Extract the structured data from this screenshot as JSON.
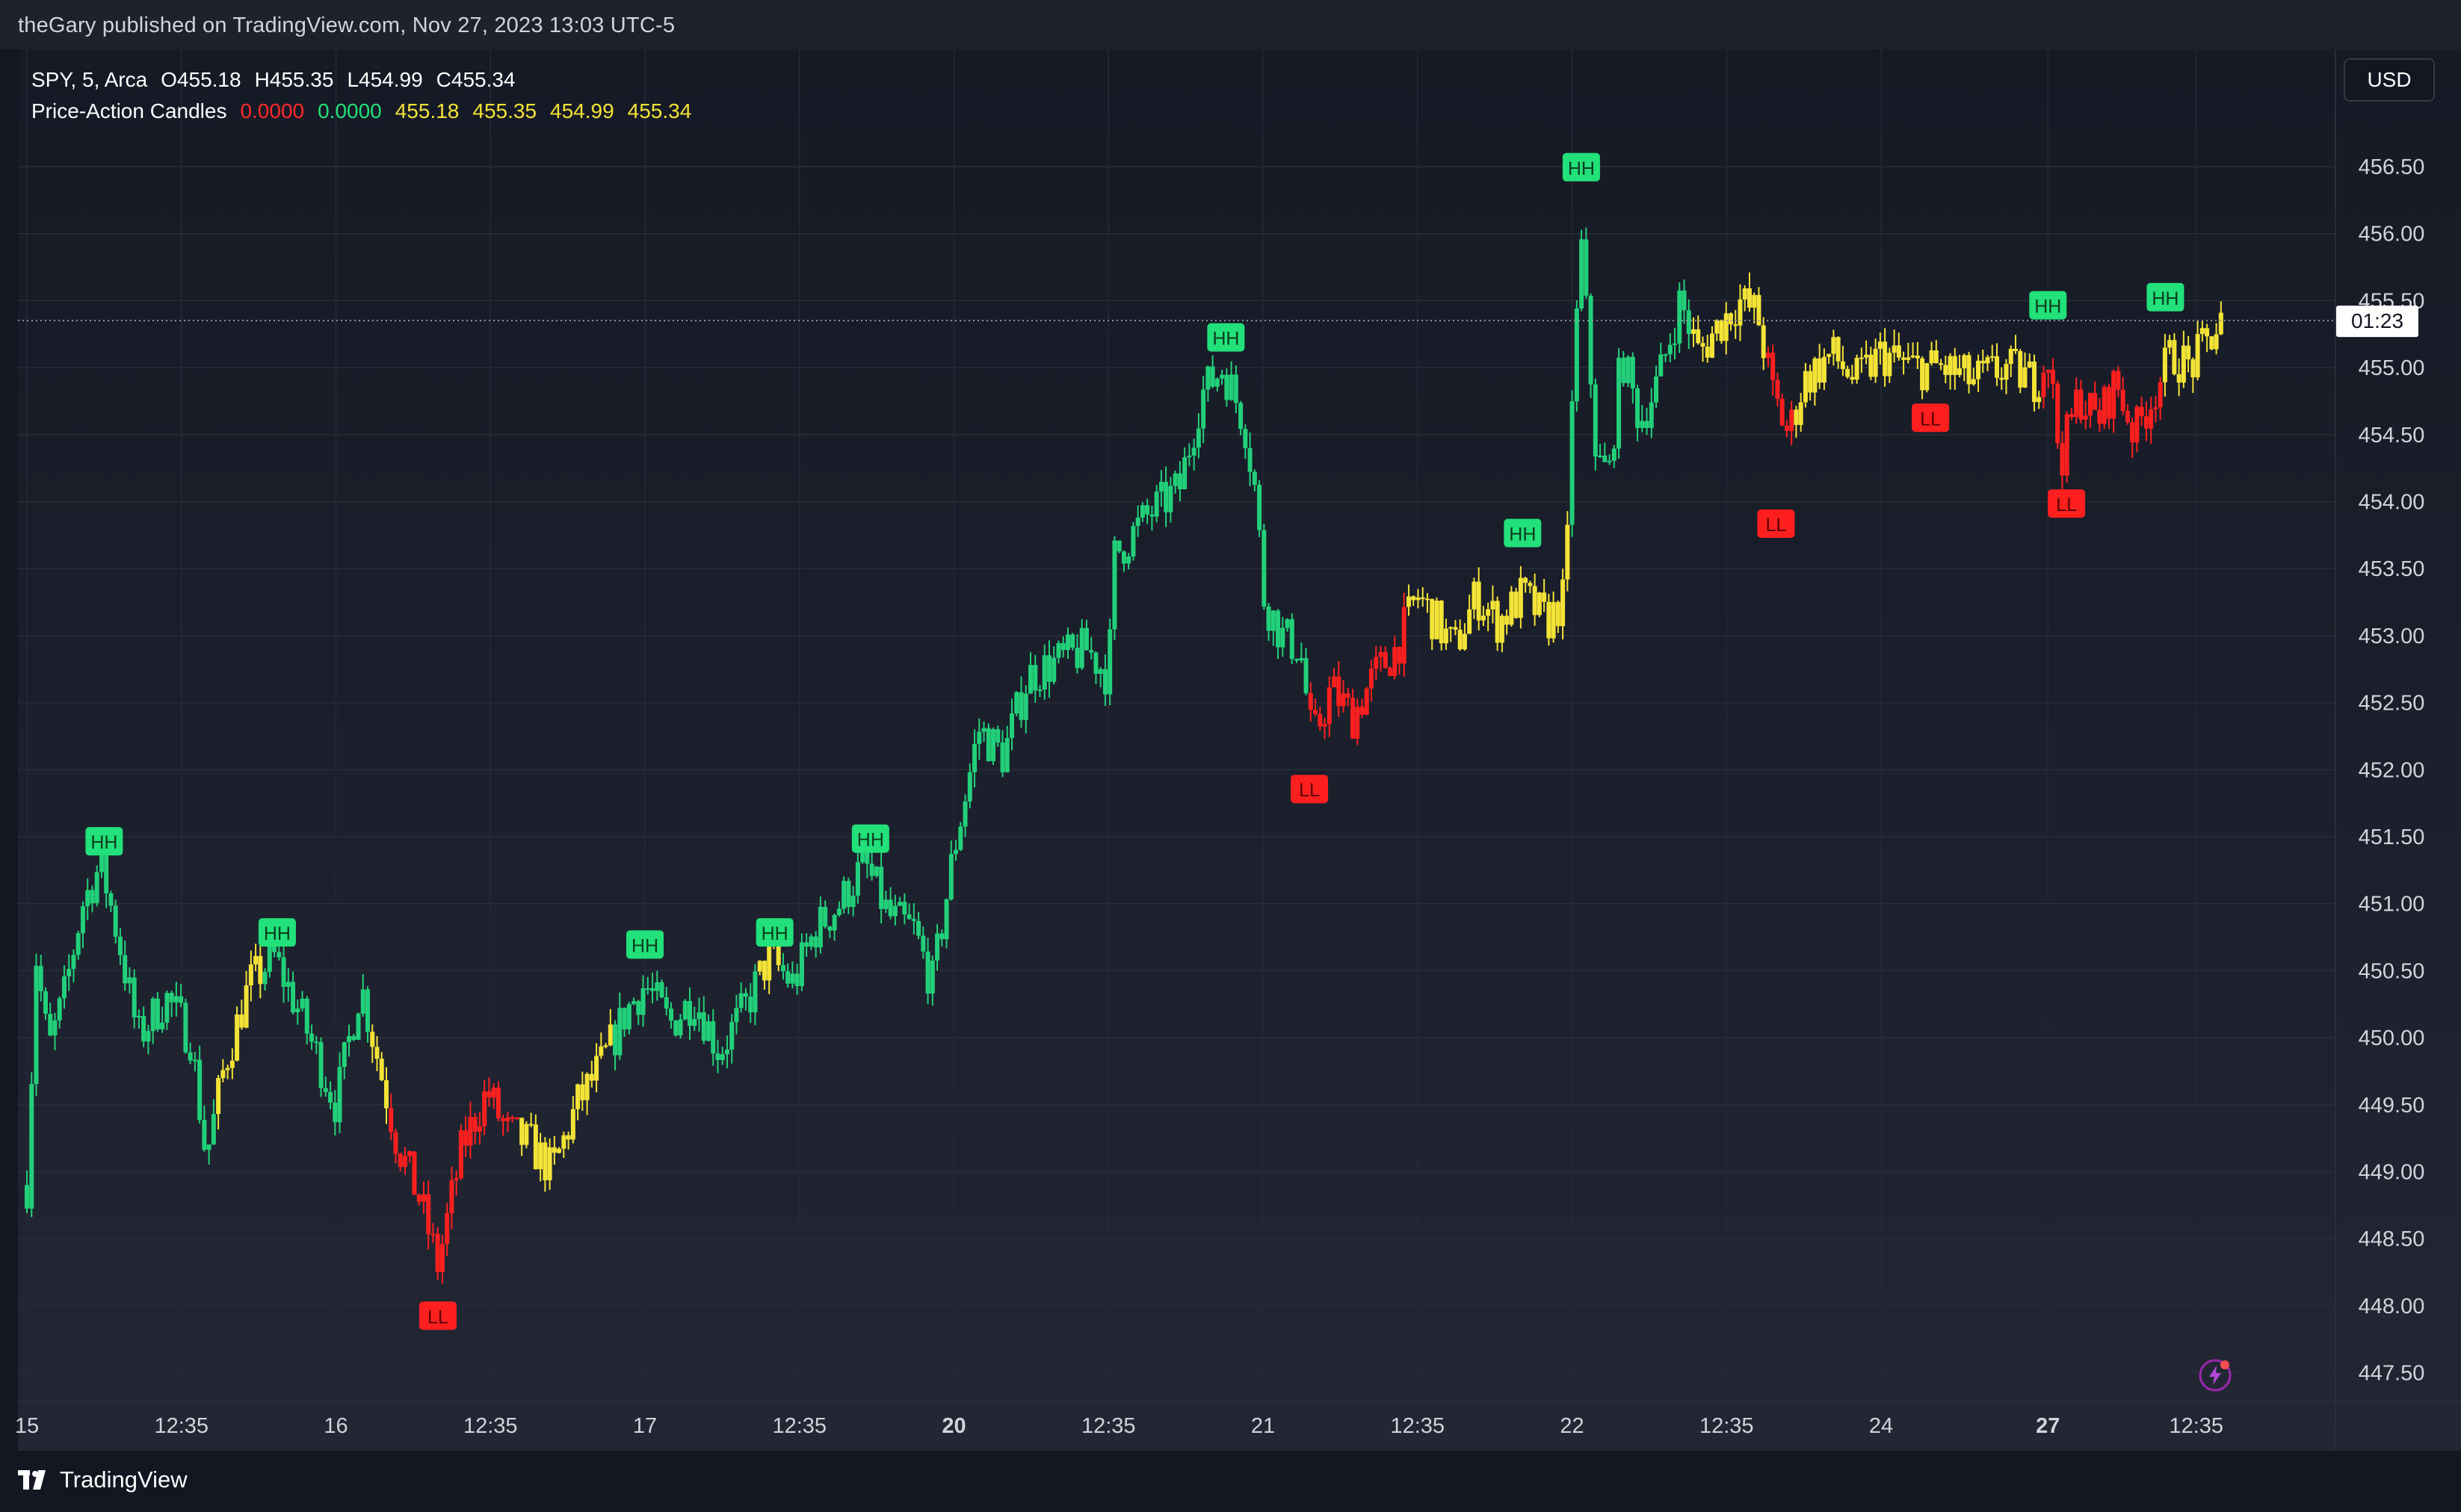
{
  "header": {
    "publish_line": "theGary published on TradingView.com, Nov 27, 2023 13:03 UTC-5"
  },
  "legend": {
    "symbol": "SPY, 5, Arca",
    "ohlc": [
      "O455.18",
      "H455.35",
      "L454.99",
      "C455.34"
    ],
    "indicator_name": "Price-Action Candles",
    "indicator_values": [
      {
        "text": "0.0000",
        "color": "#ff2a2a"
      },
      {
        "text": "0.0000",
        "color": "#22e07a"
      },
      {
        "text": "455.18",
        "color": "#f3e337"
      },
      {
        "text": "455.35",
        "color": "#f3e337"
      },
      {
        "text": "454.99",
        "color": "#f3e337"
      },
      {
        "text": "455.34",
        "color": "#f3e337"
      }
    ]
  },
  "currency": "USD",
  "countdown": "01:23",
  "brand": "TradingView",
  "colors": {
    "background": "#131722",
    "green": "#22d07a",
    "yellow": "#f3e337",
    "red": "#ff1f1f",
    "label_green": "#22e07a",
    "label_red": "#ff1f1f"
  },
  "icons": [
    "tradingview-logo-icon",
    "lightning-icon"
  ],
  "chart_data": {
    "type": "candlestick",
    "title": "",
    "ylabel": "",
    "ylim": [
      447.25,
      457.0
    ],
    "y_ticks": [
      "456.50",
      "456.00",
      "455.50",
      "455.00",
      "454.50",
      "454.00",
      "453.50",
      "453.00",
      "452.50",
      "452.00",
      "451.50",
      "451.00",
      "450.50",
      "450.00",
      "449.50",
      "449.00",
      "448.50",
      "448.00",
      "447.50"
    ],
    "x_ticks": [
      {
        "label": "15",
        "bold": false,
        "t": 0
      },
      {
        "label": "12:35",
        "bold": false,
        "t": 0.5
      },
      {
        "label": "16",
        "bold": false,
        "t": 1
      },
      {
        "label": "12:35",
        "bold": false,
        "t": 1.5
      },
      {
        "label": "17",
        "bold": false,
        "t": 2
      },
      {
        "label": "12:35",
        "bold": false,
        "t": 2.5
      },
      {
        "label": "20",
        "bold": true,
        "t": 3
      },
      {
        "label": "12:35",
        "bold": false,
        "t": 3.5
      },
      {
        "label": "21",
        "bold": false,
        "t": 4
      },
      {
        "label": "12:35",
        "bold": false,
        "t": 4.5
      },
      {
        "label": "22",
        "bold": false,
        "t": 5
      },
      {
        "label": "12:35",
        "bold": false,
        "t": 5.5
      },
      {
        "label": "24",
        "bold": false,
        "t": 6
      },
      {
        "label": "27",
        "bold": true,
        "t": 6.54
      },
      {
        "label": "12:35",
        "bold": false,
        "t": 7.02
      }
    ],
    "current_price": 455.34,
    "anchors": [
      {
        "t": 0.0,
        "v": 448.9,
        "c": "g"
      },
      {
        "t": 0.03,
        "v": 450.6,
        "c": "g"
      },
      {
        "t": 0.07,
        "v": 449.9,
        "c": "g"
      },
      {
        "t": 0.12,
        "v": 450.3,
        "c": "g"
      },
      {
        "t": 0.18,
        "v": 451.0,
        "c": "g"
      },
      {
        "t": 0.24,
        "v": 451.3,
        "c": "g"
      },
      {
        "t": 0.3,
        "v": 450.7,
        "c": "g"
      },
      {
        "t": 0.36,
        "v": 450.0,
        "c": "g"
      },
      {
        "t": 0.45,
        "v": 450.3,
        "c": "g"
      },
      {
        "t": 0.53,
        "v": 450.0,
        "c": "g"
      },
      {
        "t": 0.58,
        "v": 449.1,
        "c": "g"
      },
      {
        "t": 0.64,
        "v": 449.8,
        "c": "y"
      },
      {
        "t": 0.72,
        "v": 450.4,
        "c": "y"
      },
      {
        "t": 0.8,
        "v": 450.6,
        "c": "g"
      },
      {
        "t": 0.88,
        "v": 450.2,
        "c": "g"
      },
      {
        "t": 0.95,
        "v": 449.8,
        "c": "g"
      },
      {
        "t": 1.0,
        "v": 449.5,
        "c": "g"
      },
      {
        "t": 1.08,
        "v": 450.4,
        "c": "g"
      },
      {
        "t": 1.14,
        "v": 449.8,
        "c": "y"
      },
      {
        "t": 1.2,
        "v": 449.2,
        "c": "r"
      },
      {
        "t": 1.27,
        "v": 448.8,
        "c": "r"
      },
      {
        "t": 1.33,
        "v": 448.3,
        "c": "r"
      },
      {
        "t": 1.41,
        "v": 449.2,
        "c": "r"
      },
      {
        "t": 1.49,
        "v": 449.6,
        "c": "r"
      },
      {
        "t": 1.55,
        "v": 449.3,
        "c": "r"
      },
      {
        "t": 1.63,
        "v": 449.2,
        "c": "y"
      },
      {
        "t": 1.7,
        "v": 449.0,
        "c": "y"
      },
      {
        "t": 1.78,
        "v": 449.5,
        "c": "y"
      },
      {
        "t": 1.86,
        "v": 449.8,
        "c": "y"
      },
      {
        "t": 1.94,
        "v": 450.2,
        "c": "g"
      },
      {
        "t": 2.0,
        "v": 450.4,
        "c": "g"
      },
      {
        "t": 2.08,
        "v": 450.1,
        "c": "g"
      },
      {
        "t": 2.16,
        "v": 450.3,
        "c": "g"
      },
      {
        "t": 2.24,
        "v": 449.9,
        "c": "g"
      },
      {
        "t": 2.32,
        "v": 450.2,
        "c": "g"
      },
      {
        "t": 2.4,
        "v": 450.6,
        "c": "y"
      },
      {
        "t": 2.48,
        "v": 450.4,
        "c": "g"
      },
      {
        "t": 2.55,
        "v": 450.8,
        "c": "g"
      },
      {
        "t": 2.63,
        "v": 451.0,
        "c": "g"
      },
      {
        "t": 2.71,
        "v": 451.3,
        "c": "g"
      },
      {
        "t": 2.79,
        "v": 450.9,
        "c": "g"
      },
      {
        "t": 2.87,
        "v": 450.8,
        "c": "g"
      },
      {
        "t": 2.93,
        "v": 450.4,
        "c": "g"
      },
      {
        "t": 3.0,
        "v": 451.4,
        "c": "g"
      },
      {
        "t": 3.08,
        "v": 452.3,
        "c": "g"
      },
      {
        "t": 3.16,
        "v": 452.1,
        "c": "g"
      },
      {
        "t": 3.24,
        "v": 452.7,
        "c": "g"
      },
      {
        "t": 3.33,
        "v": 452.8,
        "c": "g"
      },
      {
        "t": 3.43,
        "v": 452.9,
        "c": "g"
      },
      {
        "t": 3.5,
        "v": 452.7,
        "c": "g"
      },
      {
        "t": 3.52,
        "v": 453.6,
        "c": "g"
      },
      {
        "t": 3.63,
        "v": 453.9,
        "c": "g"
      },
      {
        "t": 3.73,
        "v": 454.1,
        "c": "g"
      },
      {
        "t": 3.8,
        "v": 454.8,
        "c": "g"
      },
      {
        "t": 3.87,
        "v": 455.0,
        "c": "g"
      },
      {
        "t": 3.94,
        "v": 454.6,
        "c": "g"
      },
      {
        "t": 3.98,
        "v": 454.0,
        "c": "g"
      },
      {
        "t": 4.0,
        "v": 453.3,
        "c": "g"
      },
      {
        "t": 4.06,
        "v": 453.0,
        "c": "g"
      },
      {
        "t": 4.12,
        "v": 452.9,
        "c": "g"
      },
      {
        "t": 4.16,
        "v": 452.2,
        "c": "r"
      },
      {
        "t": 4.22,
        "v": 452.6,
        "c": "r"
      },
      {
        "t": 4.29,
        "v": 452.4,
        "c": "r"
      },
      {
        "t": 4.36,
        "v": 452.7,
        "c": "r"
      },
      {
        "t": 4.43,
        "v": 452.9,
        "c": "r"
      },
      {
        "t": 4.5,
        "v": 453.3,
        "c": "y"
      },
      {
        "t": 4.56,
        "v": 453.1,
        "c": "y"
      },
      {
        "t": 4.62,
        "v": 452.9,
        "c": "y"
      },
      {
        "t": 4.69,
        "v": 453.3,
        "c": "y"
      },
      {
        "t": 4.76,
        "v": 453.1,
        "c": "y"
      },
      {
        "t": 4.84,
        "v": 453.3,
        "c": "y"
      },
      {
        "t": 4.92,
        "v": 453.1,
        "c": "y"
      },
      {
        "t": 4.98,
        "v": 453.3,
        "c": "y"
      },
      {
        "t": 5.0,
        "v": 454.8,
        "c": "g"
      },
      {
        "t": 5.03,
        "v": 455.9,
        "c": "g"
      },
      {
        "t": 5.08,
        "v": 454.3,
        "c": "g"
      },
      {
        "t": 5.12,
        "v": 454.2,
        "c": "g"
      },
      {
        "t": 5.16,
        "v": 455.1,
        "c": "g"
      },
      {
        "t": 5.22,
        "v": 454.6,
        "c": "g"
      },
      {
        "t": 5.28,
        "v": 454.9,
        "c": "g"
      },
      {
        "t": 5.35,
        "v": 455.5,
        "c": "g"
      },
      {
        "t": 5.41,
        "v": 455.1,
        "c": "y"
      },
      {
        "t": 5.47,
        "v": 455.3,
        "c": "y"
      },
      {
        "t": 5.54,
        "v": 455.5,
        "c": "y"
      },
      {
        "t": 5.6,
        "v": 455.4,
        "c": "y"
      },
      {
        "t": 5.65,
        "v": 454.8,
        "c": "r"
      },
      {
        "t": 5.7,
        "v": 454.5,
        "c": "r"
      },
      {
        "t": 5.75,
        "v": 454.9,
        "c": "y"
      },
      {
        "t": 5.84,
        "v": 455.1,
        "c": "y"
      },
      {
        "t": 5.92,
        "v": 454.9,
        "c": "y"
      },
      {
        "t": 6.0,
        "v": 455.1,
        "c": "y"
      },
      {
        "t": 6.1,
        "v": 455.0,
        "c": "y"
      },
      {
        "t": 6.2,
        "v": 455.0,
        "c": "y"
      },
      {
        "t": 6.3,
        "v": 454.9,
        "c": "y"
      },
      {
        "t": 6.4,
        "v": 455.0,
        "c": "y"
      },
      {
        "t": 6.5,
        "v": 454.9,
        "c": "y"
      },
      {
        "t": 6.54,
        "v": 455.1,
        "c": "r"
      },
      {
        "t": 6.58,
        "v": 454.3,
        "c": "r"
      },
      {
        "t": 6.64,
        "v": 454.8,
        "c": "r"
      },
      {
        "t": 6.7,
        "v": 454.6,
        "c": "r"
      },
      {
        "t": 6.76,
        "v": 454.9,
        "c": "r"
      },
      {
        "t": 6.82,
        "v": 454.5,
        "c": "r"
      },
      {
        "t": 6.88,
        "v": 454.8,
        "c": "r"
      },
      {
        "t": 6.94,
        "v": 455.1,
        "c": "y"
      },
      {
        "t": 7.0,
        "v": 455.0,
        "c": "y"
      },
      {
        "t": 7.06,
        "v": 455.2,
        "c": "y"
      },
      {
        "t": 7.1,
        "v": 455.34,
        "c": "y"
      }
    ],
    "markers": [
      {
        "text": "HH",
        "type": "high",
        "t": 0.25,
        "v": 451.46
      },
      {
        "text": "HH",
        "type": "high",
        "t": 0.81,
        "v": 450.78
      },
      {
        "text": "LL",
        "type": "low",
        "t": 1.33,
        "v": 447.92
      },
      {
        "text": "HH",
        "type": "high",
        "t": 2.0,
        "v": 450.69
      },
      {
        "text": "HH",
        "type": "high",
        "t": 2.42,
        "v": 450.78
      },
      {
        "text": "HH",
        "type": "high",
        "t": 2.73,
        "v": 451.48
      },
      {
        "text": "HH",
        "type": "high",
        "t": 3.88,
        "v": 455.22
      },
      {
        "text": "LL",
        "type": "low",
        "t": 4.15,
        "v": 451.85
      },
      {
        "text": "HH",
        "type": "high",
        "t": 4.84,
        "v": 453.76
      },
      {
        "text": "HH",
        "type": "high",
        "t": 5.03,
        "v": 456.49
      },
      {
        "text": "LL",
        "type": "low",
        "t": 5.66,
        "v": 453.83
      },
      {
        "text": "LL",
        "type": "low",
        "t": 6.16,
        "v": 454.62
      },
      {
        "text": "HH",
        "type": "high",
        "t": 6.54,
        "v": 455.46
      },
      {
        "text": "LL",
        "type": "low",
        "t": 6.6,
        "v": 453.98
      },
      {
        "text": "HH",
        "type": "high",
        "t": 6.92,
        "v": 455.52
      }
    ]
  }
}
